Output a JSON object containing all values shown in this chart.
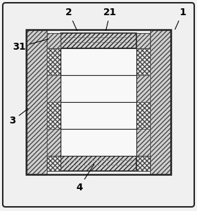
{
  "bg_color": "#f2f2f2",
  "outer_bg": "#e8e8e8",
  "panel_color": "#f0f0f0",
  "diag_hatch_color": "#d0d0d0",
  "cross_hatch_color": "#e8e8e8",
  "plain_bar_color": "#f5f5f5",
  "edge_dark": "#222222",
  "edge_med": "#444444",
  "label_fontsize": 10,
  "label_fontweight": "bold",
  "fig_w": 2.86,
  "fig_h": 3.06,
  "dpi": 100
}
